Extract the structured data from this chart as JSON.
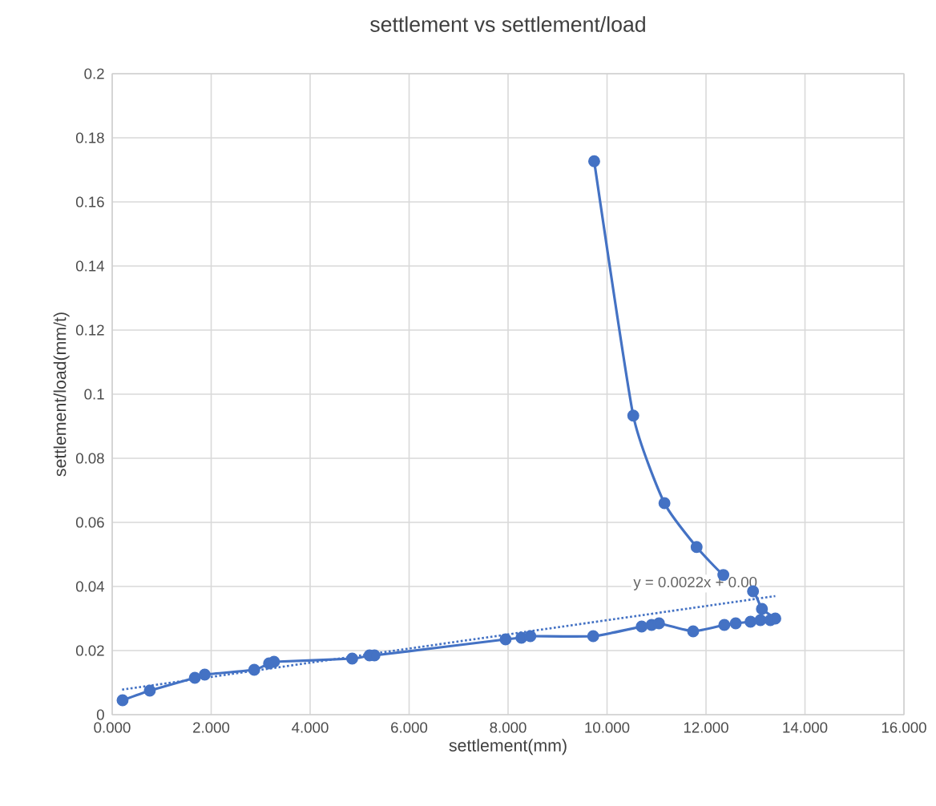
{
  "chart_data": {
    "type": "line",
    "title": "settlement vs settlement/load",
    "xlabel": "settlement(mm)",
    "ylabel": "settlement/load(mm/t)",
    "xlim": [
      0,
      16
    ],
    "xticks": [
      {
        "value": 0,
        "label": "0.000"
      },
      {
        "value": 2,
        "label": "2.000"
      },
      {
        "value": 4,
        "label": "4.000"
      },
      {
        "value": 6,
        "label": "6.000"
      },
      {
        "value": 8,
        "label": "8.000"
      },
      {
        "value": 10,
        "label": "10.000"
      },
      {
        "value": 12,
        "label": "12.000"
      },
      {
        "value": 14,
        "label": "14.000"
      },
      {
        "value": 16,
        "label": "16.000"
      }
    ],
    "ylim": [
      0,
      0.2
    ],
    "yticks": [
      0,
      0.02,
      0.04,
      0.06,
      0.08,
      0.1,
      0.12,
      0.14,
      0.16,
      0.18,
      0.2
    ],
    "grid": true,
    "series": [
      {
        "color": "#4472c4",
        "marker": "circle",
        "line_style": "solid",
        "x": [
          0.21,
          0.76,
          1.67,
          1.87,
          2.87,
          3.17,
          3.27,
          4.85,
          5.2,
          5.3,
          7.95,
          8.27,
          8.45,
          9.72,
          10.7,
          10.9,
          11.05,
          11.74,
          12.37,
          12.6,
          12.9,
          13.1,
          13.3,
          13.4,
          13.13,
          12.95,
          12.35,
          11.81,
          11.16,
          10.53,
          9.74
        ],
        "values": [
          0.0045,
          0.0075,
          0.0115,
          0.0125,
          0.014,
          0.016,
          0.0165,
          0.0175,
          0.0185,
          0.0185,
          0.0235,
          0.024,
          0.0245,
          0.0245,
          0.0275,
          0.028,
          0.0285,
          0.026,
          0.028,
          0.0285,
          0.029,
          0.0295,
          0.0295,
          0.03,
          0.033,
          0.0385,
          0.0436,
          0.0523,
          0.066,
          0.0933,
          0.1727
        ]
      },
      {
        "type": "line",
        "color": "#4472c4",
        "marker": "none",
        "line_style": "dotted",
        "x": [
          0.2,
          13.4
        ],
        "values": [
          0.0078,
          0.037
        ]
      }
    ],
    "annotations": [
      "y = 0.0022x + 0.00"
    ]
  }
}
